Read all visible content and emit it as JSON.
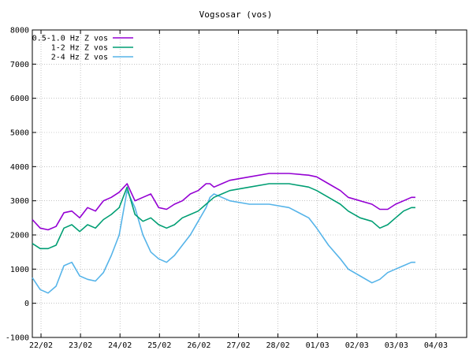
{
  "chart_data": {
    "type": "line",
    "title": "Vogsosar (vos)",
    "xlabel": "",
    "ylabel": "",
    "ylim": [
      -1000,
      8000
    ],
    "yticks": [
      -1000,
      0,
      1000,
      2000,
      3000,
      4000,
      5000,
      6000,
      7000,
      8000
    ],
    "xlim": [
      0,
      11
    ],
    "xticks": [
      {
        "x": 0.22,
        "label": "22/02"
      },
      {
        "x": 1.22,
        "label": "23/02"
      },
      {
        "x": 2.22,
        "label": "24/02"
      },
      {
        "x": 3.22,
        "label": "25/02"
      },
      {
        "x": 4.22,
        "label": "26/02"
      },
      {
        "x": 5.22,
        "label": "27/02"
      },
      {
        "x": 6.22,
        "label": "28/02"
      },
      {
        "x": 7.22,
        "label": "01/03"
      },
      {
        "x": 8.22,
        "label": "02/03"
      },
      {
        "x": 9.22,
        "label": "03/03"
      },
      {
        "x": 10.22,
        "label": "04/03"
      }
    ],
    "grid": true,
    "legend_position": "top-left",
    "series": [
      {
        "name": "0.5-1.0 Hz Z vos",
        "color": "#9400d3",
        "x": [
          0,
          0.2,
          0.4,
          0.6,
          0.8,
          1.0,
          1.2,
          1.4,
          1.6,
          1.8,
          2.0,
          2.2,
          2.4,
          2.6,
          2.8,
          3.0,
          3.2,
          3.4,
          3.6,
          3.8,
          4.0,
          4.2,
          4.4,
          4.5,
          4.6,
          4.8,
          5.0,
          5.5,
          6.0,
          6.5,
          7.0,
          7.2,
          7.5,
          7.8,
          8.0,
          8.3,
          8.6,
          8.8,
          9.0,
          9.2,
          9.4,
          9.6,
          9.7
        ],
        "values": [
          2450,
          2200,
          2150,
          2250,
          2650,
          2700,
          2500,
          2800,
          2700,
          3000,
          3100,
          3250,
          3500,
          3000,
          3100,
          3200,
          2800,
          2750,
          2900,
          3000,
          3200,
          3300,
          3500,
          3500,
          3400,
          3500,
          3600,
          3700,
          3800,
          3800,
          3750,
          3700,
          3500,
          3300,
          3100,
          3000,
          2900,
          2750,
          2750,
          2900,
          3000,
          3100,
          3100
        ]
      },
      {
        "name": "1-2 Hz Z vos",
        "color": "#009e73",
        "x": [
          0,
          0.2,
          0.4,
          0.6,
          0.8,
          1.0,
          1.2,
          1.4,
          1.6,
          1.8,
          2.0,
          2.2,
          2.4,
          2.6,
          2.8,
          3.0,
          3.2,
          3.4,
          3.6,
          3.8,
          4.0,
          4.2,
          4.4,
          4.5,
          4.6,
          4.8,
          5.0,
          5.5,
          6.0,
          6.5,
          7.0,
          7.2,
          7.5,
          7.8,
          8.0,
          8.3,
          8.6,
          8.8,
          9.0,
          9.2,
          9.4,
          9.6,
          9.7
        ],
        "values": [
          1750,
          1600,
          1600,
          1700,
          2200,
          2300,
          2100,
          2300,
          2200,
          2450,
          2600,
          2800,
          3400,
          2600,
          2400,
          2500,
          2300,
          2200,
          2300,
          2500,
          2600,
          2700,
          2900,
          3000,
          3100,
          3200,
          3300,
          3400,
          3500,
          3500,
          3400,
          3300,
          3100,
          2900,
          2700,
          2500,
          2400,
          2200,
          2300,
          2500,
          2700,
          2800,
          2800
        ]
      },
      {
        "name": "2-4 Hz Z vos",
        "color": "#56b4e9",
        "x": [
          0,
          0.2,
          0.4,
          0.6,
          0.8,
          1.0,
          1.2,
          1.4,
          1.6,
          1.8,
          2.0,
          2.2,
          2.4,
          2.6,
          2.8,
          3.0,
          3.2,
          3.4,
          3.6,
          3.8,
          4.0,
          4.2,
          4.4,
          4.5,
          4.6,
          4.8,
          5.0,
          5.5,
          6.0,
          6.5,
          7.0,
          7.2,
          7.5,
          7.8,
          8.0,
          8.3,
          8.6,
          8.8,
          9.0,
          9.2,
          9.4,
          9.6,
          9.7
        ],
        "values": [
          750,
          400,
          300,
          500,
          1100,
          1200,
          800,
          700,
          650,
          900,
          1400,
          2000,
          3300,
          2800,
          2000,
          1500,
          1300,
          1200,
          1400,
          1700,
          2000,
          2400,
          2800,
          3100,
          3200,
          3100,
          3000,
          2900,
          2900,
          2800,
          2500,
          2200,
          1700,
          1300,
          1000,
          800,
          600,
          700,
          900,
          1000,
          1100,
          1200,
          1200
        ]
      }
    ]
  }
}
